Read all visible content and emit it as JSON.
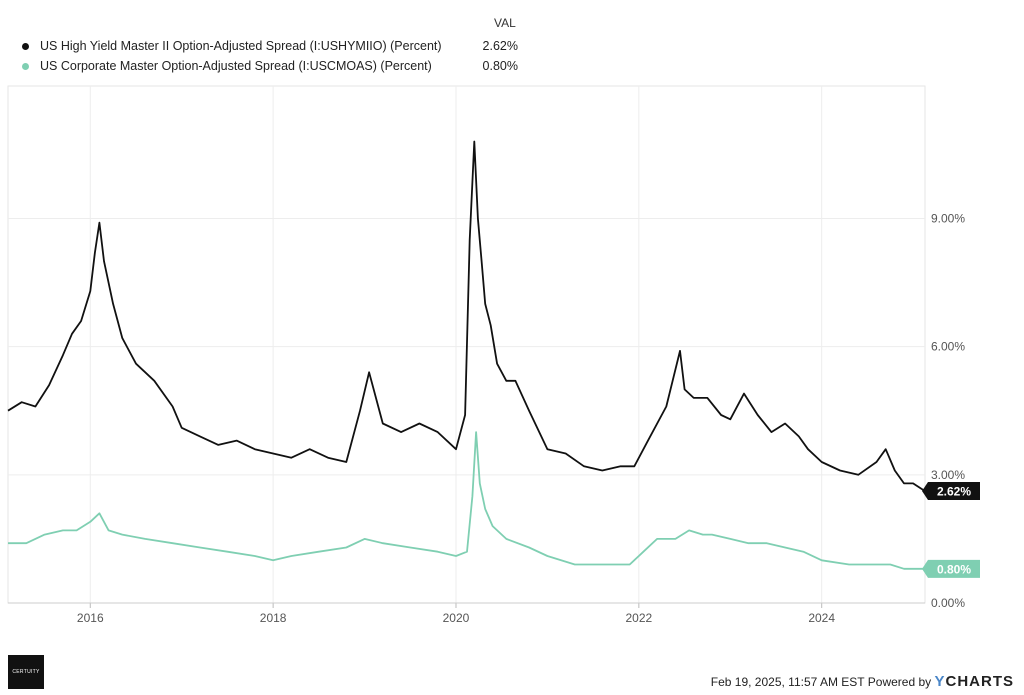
{
  "legend": {
    "header": "VAL",
    "items": [
      {
        "name": "US High Yield Master II Option-Adjusted Spread (I:USHYMIIO) (Percent)",
        "value": "2.62%",
        "color": "#111111"
      },
      {
        "name": "US Corporate Master Option-Adjusted Spread (I:USCMOAS) (Percent)",
        "value": "0.80%",
        "color": "#7fcfb2"
      }
    ]
  },
  "footer": {
    "logo_text": "CERTUITY",
    "timestamp": "Feb 19, 2025, 11:57 AM EST",
    "powered_by": "Powered by",
    "brand_y": "Y",
    "brand_rest": "CHARTS"
  },
  "chart_data": {
    "type": "line",
    "title": "",
    "xlabel": "",
    "ylabel": "",
    "xlim": [
      2015.1,
      2025.13
    ],
    "ylim": [
      0,
      12.1
    ],
    "x_ticks": [
      "2016",
      "2018",
      "2020",
      "2022",
      "2024"
    ],
    "y_ticks": [
      "9.00%",
      "6.00%",
      "3.00%",
      "0.00%"
    ],
    "grid": true,
    "end_labels": [
      "2.62%",
      "0.80%"
    ],
    "series": [
      {
        "name": "US High Yield Master II Option-Adjusted Spread (I:USHYMIIO) (Percent)",
        "color": "#111111",
        "x": [
          2015.1,
          2015.25,
          2015.4,
          2015.55,
          2015.7,
          2015.8,
          2015.9,
          2016.0,
          2016.05,
          2016.1,
          2016.15,
          2016.25,
          2016.35,
          2016.5,
          2016.7,
          2016.9,
          2017.0,
          2017.2,
          2017.4,
          2017.6,
          2017.8,
          2018.0,
          2018.2,
          2018.4,
          2018.6,
          2018.8,
          2018.95,
          2019.05,
          2019.2,
          2019.4,
          2019.6,
          2019.8,
          2020.0,
          2020.1,
          2020.15,
          2020.2,
          2020.24,
          2020.28,
          2020.32,
          2020.38,
          2020.45,
          2020.55,
          2020.65,
          2020.8,
          2021.0,
          2021.2,
          2021.4,
          2021.6,
          2021.8,
          2021.95,
          2022.1,
          2022.3,
          2022.45,
          2022.5,
          2022.6,
          2022.75,
          2022.9,
          2023.0,
          2023.15,
          2023.3,
          2023.45,
          2023.6,
          2023.75,
          2023.85,
          2024.0,
          2024.2,
          2024.4,
          2024.6,
          2024.7,
          2024.8,
          2024.9,
          2025.0,
          2025.13
        ],
        "y": [
          4.5,
          4.7,
          4.6,
          5.1,
          5.8,
          6.3,
          6.6,
          7.3,
          8.2,
          8.9,
          8.0,
          7.0,
          6.2,
          5.6,
          5.2,
          4.6,
          4.1,
          3.9,
          3.7,
          3.8,
          3.6,
          3.5,
          3.4,
          3.6,
          3.4,
          3.3,
          4.5,
          5.4,
          4.2,
          4.0,
          4.2,
          4.0,
          3.6,
          4.4,
          8.5,
          10.8,
          9.0,
          8.0,
          7.0,
          6.5,
          5.6,
          5.2,
          5.2,
          4.5,
          3.6,
          3.5,
          3.2,
          3.1,
          3.2,
          3.2,
          3.8,
          4.6,
          5.9,
          5.0,
          4.8,
          4.8,
          4.4,
          4.3,
          4.9,
          4.4,
          4.0,
          4.2,
          3.9,
          3.6,
          3.3,
          3.1,
          3.0,
          3.3,
          3.6,
          3.1,
          2.8,
          2.8,
          2.62
        ]
      },
      {
        "name": "US Corporate Master Option-Adjusted Spread (I:USCMOAS) (Percent)",
        "color": "#7fcfb2",
        "x": [
          2015.1,
          2015.3,
          2015.5,
          2015.7,
          2015.85,
          2016.0,
          2016.1,
          2016.2,
          2016.35,
          2016.6,
          2016.9,
          2017.2,
          2017.5,
          2017.8,
          2018.0,
          2018.2,
          2018.5,
          2018.8,
          2019.0,
          2019.2,
          2019.5,
          2019.8,
          2020.0,
          2020.12,
          2020.18,
          2020.22,
          2020.26,
          2020.32,
          2020.4,
          2020.55,
          2020.8,
          2021.0,
          2021.3,
          2021.6,
          2021.9,
          2022.05,
          2022.2,
          2022.4,
          2022.55,
          2022.7,
          2022.8,
          2023.0,
          2023.2,
          2023.4,
          2023.6,
          2023.8,
          2024.0,
          2024.3,
          2024.6,
          2024.75,
          2024.9,
          2025.0,
          2025.13
        ],
        "y": [
          1.4,
          1.4,
          1.6,
          1.7,
          1.7,
          1.9,
          2.1,
          1.7,
          1.6,
          1.5,
          1.4,
          1.3,
          1.2,
          1.1,
          1.0,
          1.1,
          1.2,
          1.3,
          1.5,
          1.4,
          1.3,
          1.2,
          1.1,
          1.2,
          2.5,
          4.0,
          2.8,
          2.2,
          1.8,
          1.5,
          1.3,
          1.1,
          0.9,
          0.9,
          0.9,
          1.2,
          1.5,
          1.5,
          1.7,
          1.6,
          1.6,
          1.5,
          1.4,
          1.4,
          1.3,
          1.2,
          1.0,
          0.9,
          0.9,
          0.9,
          0.8,
          0.8,
          0.8
        ]
      }
    ]
  }
}
